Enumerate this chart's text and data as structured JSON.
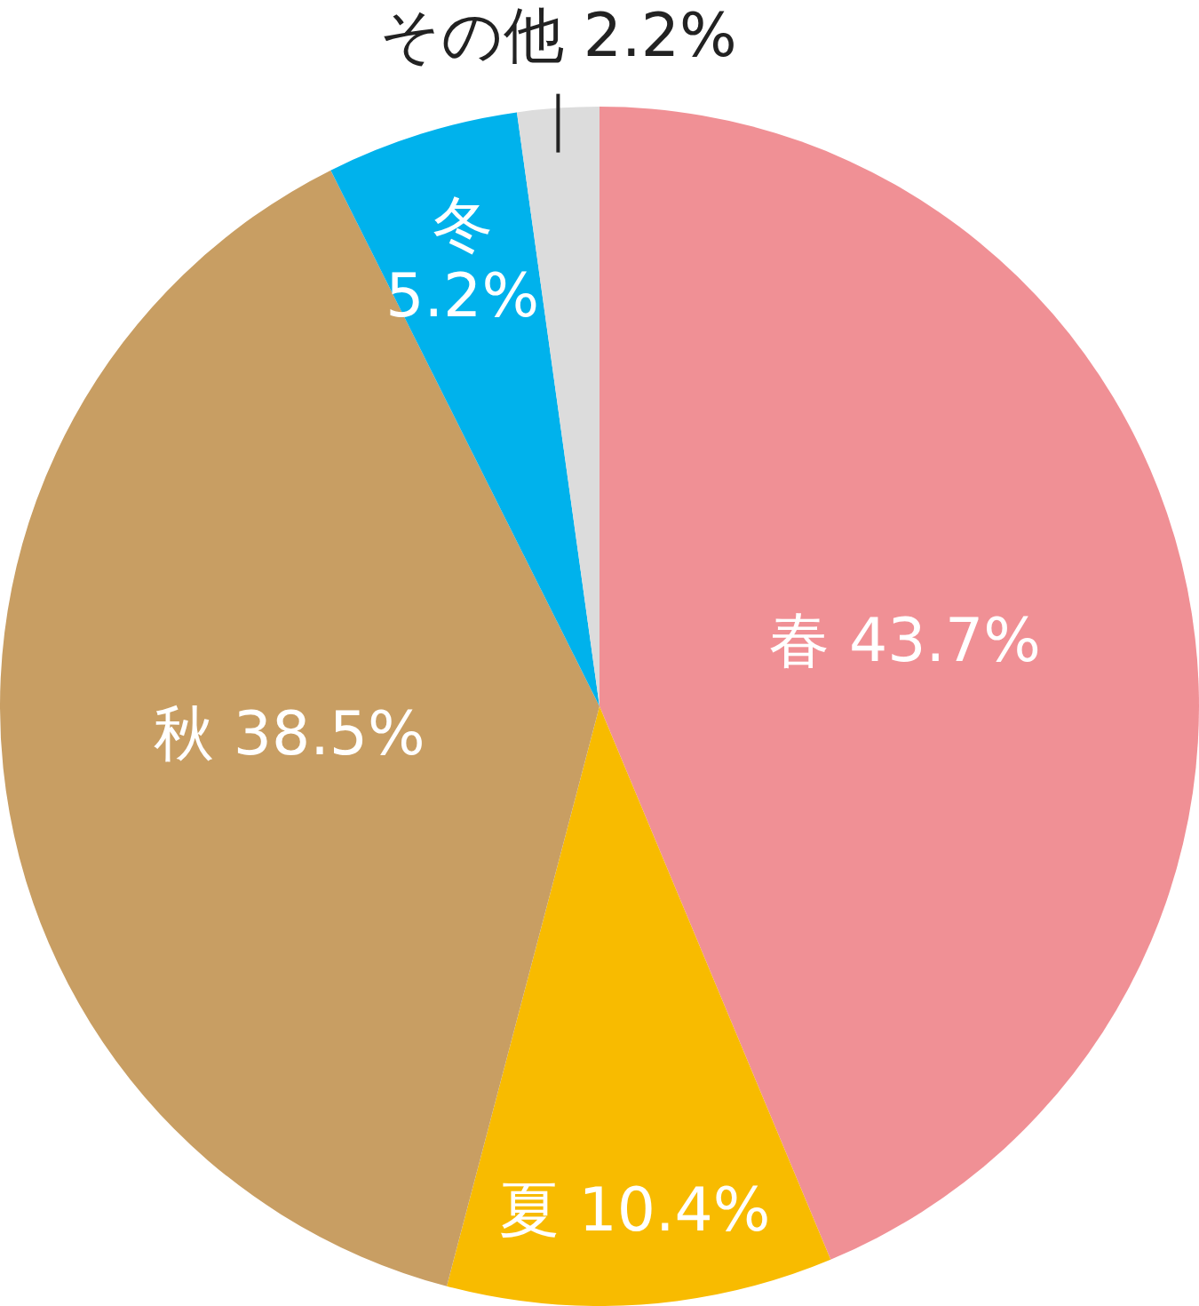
{
  "chart_data": {
    "type": "pie",
    "categories": [
      "春",
      "夏",
      "秋",
      "冬",
      "その他"
    ],
    "values": [
      43.7,
      10.4,
      38.5,
      5.2,
      2.2
    ],
    "colors": [
      "#f09095",
      "#f8bb00",
      "#c89e63",
      "#00b2ec",
      "#dcdcdc"
    ],
    "value_labels": [
      "43.7%",
      "10.4%",
      "38.5%",
      "5.2%",
      "2.2%"
    ],
    "legend": false
  }
}
